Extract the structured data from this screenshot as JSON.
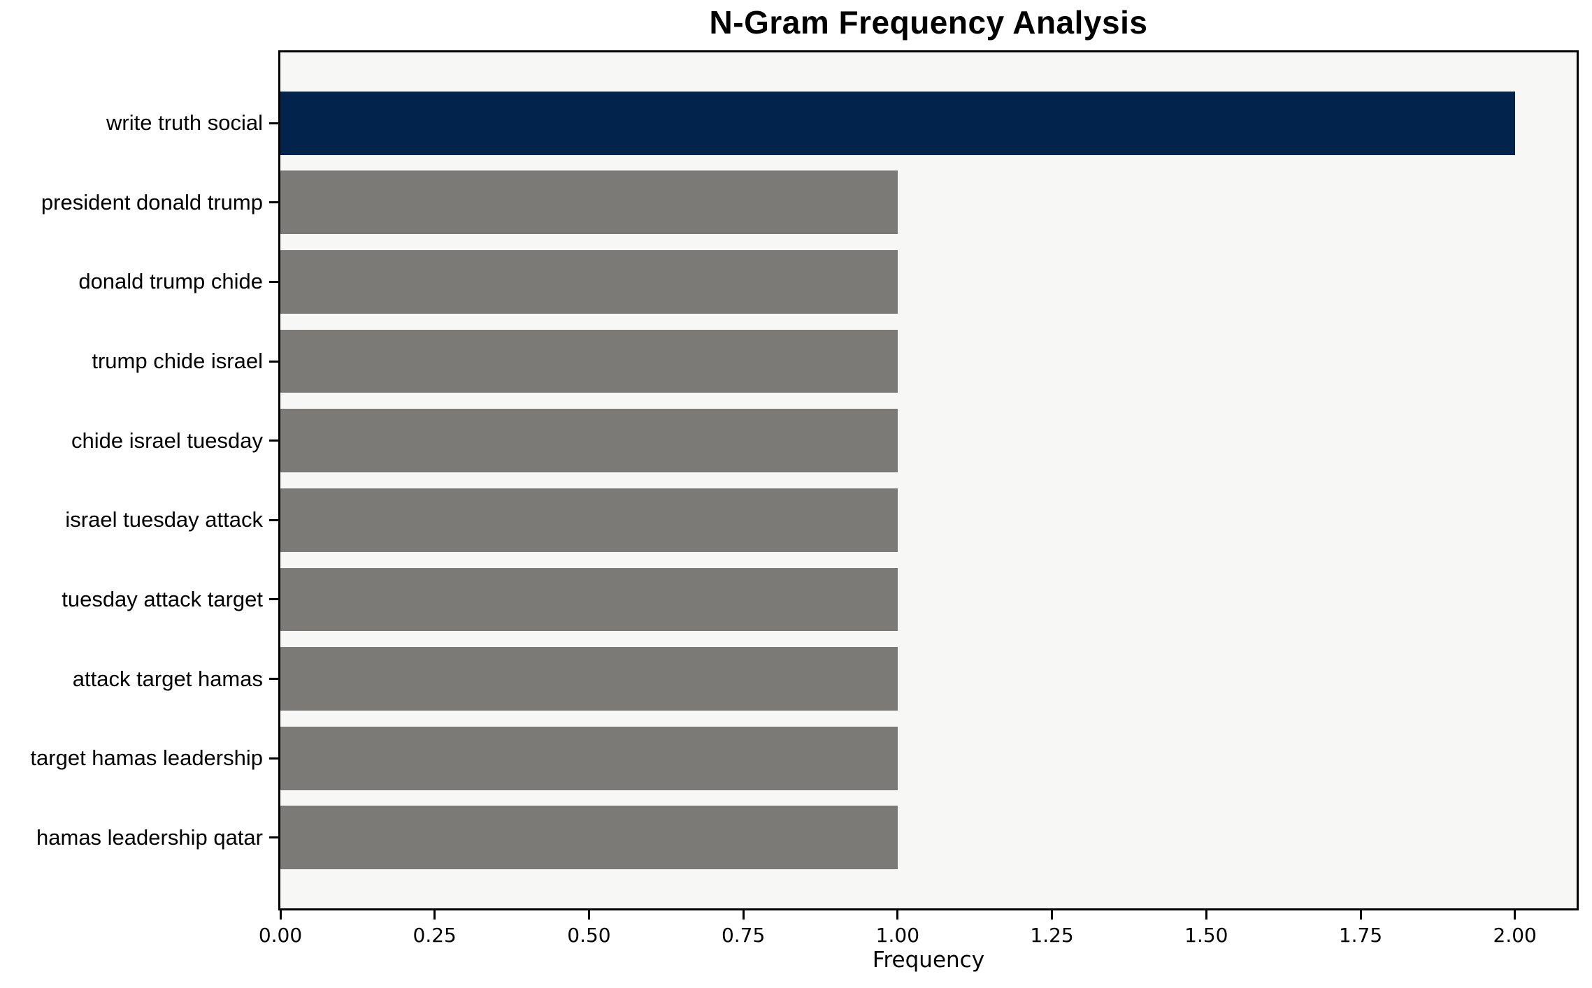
{
  "chart_data": {
    "type": "bar",
    "orientation": "horizontal",
    "title": "N-Gram Frequency Analysis",
    "xlabel": "Frequency",
    "ylabel": "",
    "categories": [
      "write truth social",
      "president donald trump",
      "donald trump chide",
      "trump chide israel",
      "chide israel tuesday",
      "israel tuesday attack",
      "tuesday attack target",
      "attack target hamas",
      "target hamas leadership",
      "hamas leadership qatar"
    ],
    "values": [
      2,
      1,
      1,
      1,
      1,
      1,
      1,
      1,
      1,
      1
    ],
    "bar_colors": [
      "#02234C",
      "#7B7A77",
      "#7B7A77",
      "#7B7A77",
      "#7B7A77",
      "#7B7A77",
      "#7B7A77",
      "#7B7A77",
      "#7B7A77",
      "#7B7A77"
    ],
    "xlim": [
      0,
      2.1
    ],
    "xticks": [
      0,
      0.25,
      0.5,
      0.75,
      1.0,
      1.25,
      1.5,
      1.75,
      2.0
    ],
    "xtick_labels": [
      "0.00",
      "0.25",
      "0.50",
      "0.75",
      "1.00",
      "1.25",
      "1.50",
      "1.75",
      "2.00"
    ],
    "grid": false,
    "legend": null,
    "colors": {
      "highlight_bar": "#02234C",
      "default_bar": "#7B7A77",
      "plot_background": "#F7F7F6",
      "figure_background": "#FFFFFF",
      "axis": "#000000",
      "text": "#000000"
    }
  }
}
